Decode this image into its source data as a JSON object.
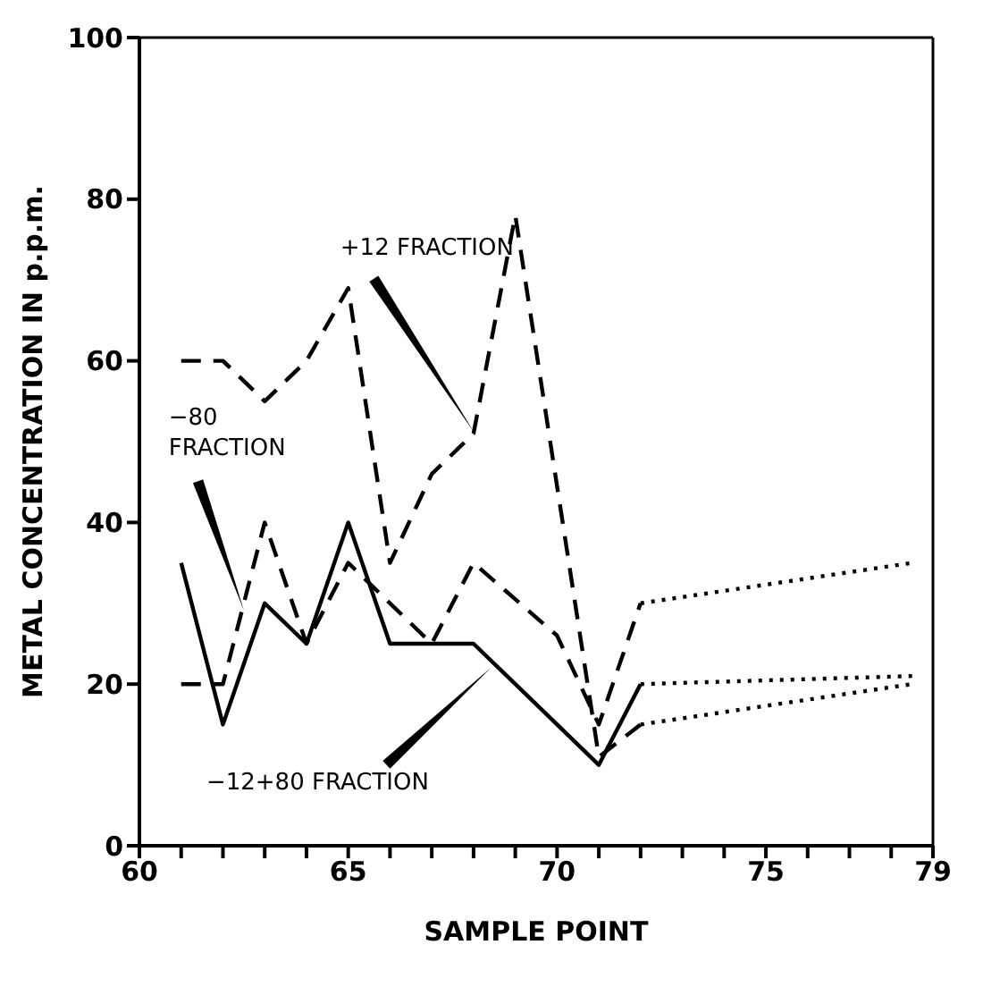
{
  "chart_data": {
    "type": "line",
    "xlabel": "SAMPLE POINT",
    "ylabel": "METAL CONCENTRATION IN p.p.m.",
    "xlim": [
      60,
      79
    ],
    "xticks": [
      60,
      {
        "value": 61,
        "label": null
      },
      {
        "value": 62,
        "label": null
      },
      {
        "value": 63,
        "label": null
      },
      {
        "value": 64,
        "label": null
      },
      65,
      {
        "value": 66,
        "label": null
      },
      {
        "value": 67,
        "label": null
      },
      {
        "value": 68,
        "label": null
      },
      {
        "value": 69,
        "label": null
      },
      70,
      {
        "value": 71,
        "label": null
      },
      {
        "value": 72,
        "label": null
      },
      {
        "value": 73,
        "label": null
      },
      {
        "value": 74,
        "label": null
      },
      75,
      {
        "value": 76,
        "label": null
      },
      {
        "value": 77,
        "label": null
      },
      {
        "value": 78,
        "label": null
      },
      79
    ],
    "ylim": [
      0,
      100
    ],
    "yticks": [
      0,
      20,
      40,
      60,
      80,
      100
    ],
    "marker": "none",
    "series": [
      {
        "name": "+12 FRACTION",
        "color": "#000000",
        "line_style": "dashed",
        "x": [
          61,
          62,
          63,
          64,
          65,
          66,
          67,
          68,
          69,
          71,
          72
        ],
        "values": [
          60,
          60,
          55,
          60,
          69,
          35,
          46,
          51,
          78,
          11,
          15
        ]
      },
      {
        "color": "#000000",
        "line_style": "dotted",
        "x": [
          72,
          78.5
        ],
        "values": [
          15,
          20
        ]
      },
      {
        "name": "−80 FRACTION",
        "color": "#000000",
        "line_style": "dashed",
        "x": [
          61,
          62,
          63,
          64,
          65,
          66,
          67,
          68,
          70,
          71,
          72
        ],
        "values": [
          20,
          20,
          40,
          25,
          35,
          30,
          25,
          35,
          26,
          15,
          30
        ]
      },
      {
        "color": "#000000",
        "line_style": "dotted",
        "x": [
          72,
          78.5
        ],
        "values": [
          30,
          35
        ]
      },
      {
        "name": "−12+80 FRACTION",
        "color": "#000000",
        "line_style": "solid",
        "x": [
          61,
          62,
          63,
          64,
          65,
          66,
          67,
          68,
          69,
          70,
          71,
          72
        ],
        "values": [
          35,
          15,
          30,
          25,
          40,
          25,
          25,
          25,
          20,
          15,
          10,
          20
        ]
      },
      {
        "color": "#000000",
        "line_style": "dotted",
        "x": [
          72,
          78.5
        ],
        "values": [
          20,
          21
        ]
      }
    ]
  }
}
